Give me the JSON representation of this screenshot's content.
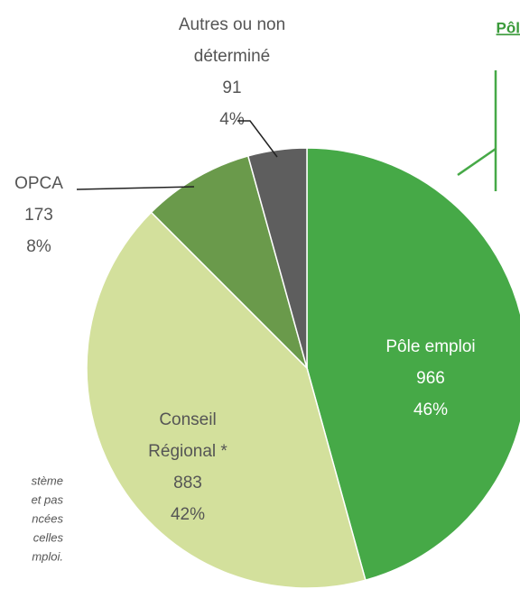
{
  "chart_data": {
    "type": "pie",
    "categories": [
      [
        "Pôle emploi"
      ],
      [
        "Conseil",
        "Régional *"
      ],
      [
        "OPCA"
      ],
      [
        "Autres ou non",
        "déterminé"
      ]
    ],
    "values": [
      966,
      883,
      173,
      91
    ],
    "percent_labels": [
      "46%",
      "42%",
      "8%",
      "4%"
    ],
    "colors": [
      "#46a947",
      "#d3e09c",
      "#6a9a4b",
      "#5e5e5e"
    ],
    "heading": "Pôl",
    "note": [
      "stème",
      "et pas",
      "ncées",
      "celles",
      "mploi."
    ]
  }
}
